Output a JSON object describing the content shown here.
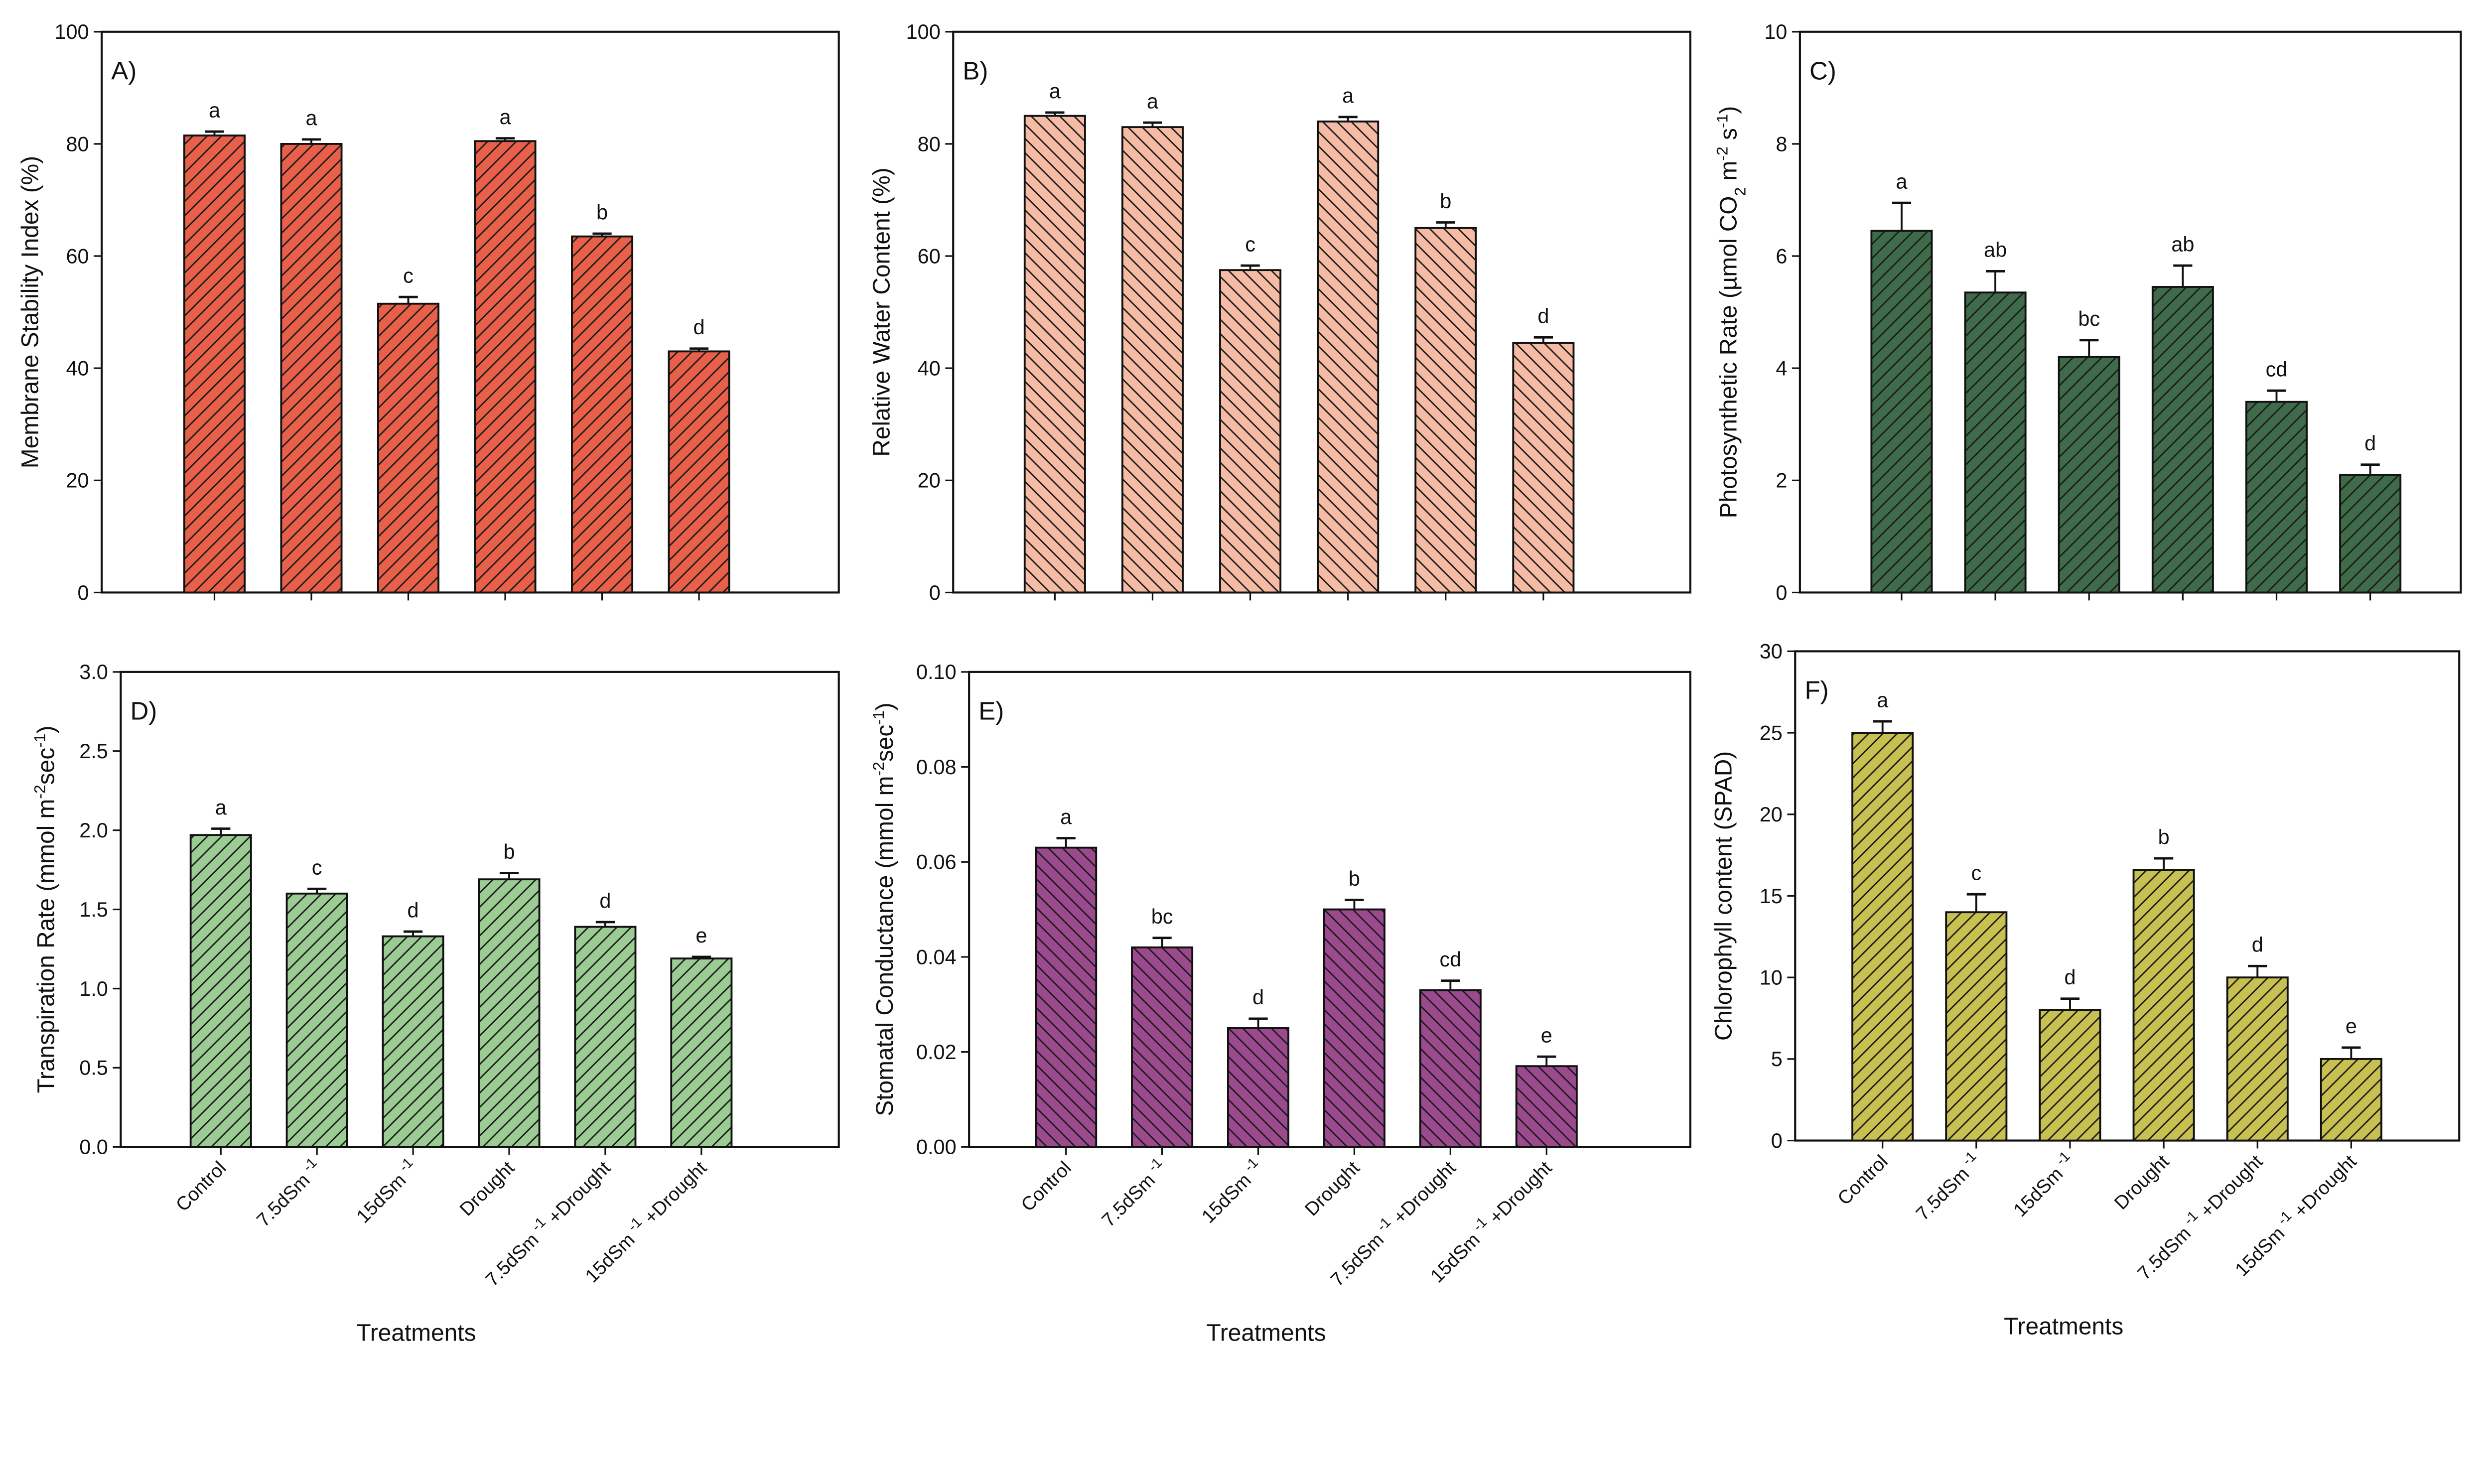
{
  "chart_data": [
    {
      "type": "bar",
      "panel": "A)",
      "title": "",
      "ylabel": [
        {
          "t": "Membrane Stability Index (%)"
        }
      ],
      "xlabel": "",
      "ylim": [
        0,
        100
      ],
      "yticks": [
        0,
        20,
        40,
        60,
        80,
        100
      ],
      "tickfmt": 0,
      "categories": [
        [
          "Control"
        ],
        [
          "7.5dSm",
          "-1"
        ],
        [
          "15dSm",
          "-1"
        ],
        [
          "Drought"
        ],
        [
          "7.5dSm",
          "-1",
          " +Drought"
        ],
        [
          "15dSm",
          "-1",
          " +Drought"
        ]
      ],
      "values": [
        81.5,
        80,
        51.5,
        80.5,
        63.5,
        43
      ],
      "errors": [
        0.7,
        0.8,
        1.2,
        0.5,
        0.5,
        0.5
      ],
      "letters": [
        "a",
        "a",
        "c",
        "a",
        "b",
        "d"
      ],
      "color": "#e8604a",
      "hatch": "forward",
      "show_xticks": false
    },
    {
      "type": "bar",
      "panel": "B)",
      "title": "",
      "ylabel": [
        {
          "t": "Relative Water Content (%)"
        }
      ],
      "xlabel": "",
      "ylim": [
        0,
        100
      ],
      "yticks": [
        0,
        20,
        40,
        60,
        80,
        100
      ],
      "tickfmt": 0,
      "categories": [
        [
          "Control"
        ],
        [
          "7.5dSm",
          "-1"
        ],
        [
          "15dSm",
          "-1"
        ],
        [
          "Drought"
        ],
        [
          "7.5dSm",
          "-1",
          " +Drought"
        ],
        [
          "15dSm",
          "-1",
          " +Drought"
        ]
      ],
      "values": [
        85,
        83,
        57.5,
        84,
        65,
        44.5
      ],
      "errors": [
        0.6,
        0.8,
        0.8,
        0.8,
        1.0,
        1.0
      ],
      "letters": [
        "a",
        "a",
        "c",
        "a",
        "b",
        "d"
      ],
      "color": "#f6bba4",
      "hatch": "backward",
      "show_xticks": false
    },
    {
      "type": "bar",
      "panel": "C)",
      "title": "",
      "ylabel": [
        {
          "t": "Photosynthetic Rate (µmol CO"
        },
        {
          "t": "2",
          "sub": true
        },
        {
          "t": " m"
        },
        {
          "t": "-2",
          "sup": true
        },
        {
          "t": " s"
        },
        {
          "t": "-1",
          "sup": true
        },
        {
          "t": ")"
        }
      ],
      "xlabel": "",
      "ylim": [
        0,
        10
      ],
      "yticks": [
        0,
        2,
        4,
        6,
        8,
        10
      ],
      "tickfmt": 0,
      "categories": [
        [
          "Control"
        ],
        [
          "7.5dSm",
          "-1"
        ],
        [
          "15dSm",
          "-1"
        ],
        [
          "Drought"
        ],
        [
          "7.5dSm",
          "-1",
          " +Drought"
        ],
        [
          "15dSm",
          "-1",
          " +Drought"
        ]
      ],
      "values": [
        6.45,
        5.35,
        4.2,
        5.45,
        3.4,
        2.1
      ],
      "errors": [
        0.5,
        0.38,
        0.3,
        0.38,
        0.2,
        0.18
      ],
      "letters": [
        "a",
        "ab",
        "bc",
        "ab",
        "cd",
        "d"
      ],
      "color": "#3f6b4a",
      "hatch": "forward",
      "show_xticks": false
    },
    {
      "type": "bar",
      "panel": "D)",
      "title": "",
      "ylabel": [
        {
          "t": "Transpiration Rate (mmol m"
        },
        {
          "t": "-2",
          "sup": true
        },
        {
          "t": "sec"
        },
        {
          "t": "-1",
          "sup": true
        },
        {
          "t": ")"
        }
      ],
      "xlabel": "Treatments",
      "ylim": [
        0,
        3
      ],
      "yticks": [
        0,
        0.5,
        1,
        1.5,
        2,
        2.5,
        3
      ],
      "tickfmt": 1,
      "categories": [
        [
          "Control"
        ],
        [
          "7.5dSm",
          "-1"
        ],
        [
          "15dSm",
          "-1"
        ],
        [
          "Drought"
        ],
        [
          "7.5dSm",
          "-1",
          " +Drought"
        ],
        [
          "15dSm",
          "-1",
          " +Drought"
        ]
      ],
      "values": [
        1.97,
        1.6,
        1.33,
        1.69,
        1.39,
        1.19
      ],
      "errors": [
        0.04,
        0.03,
        0.03,
        0.04,
        0.03,
        0.01
      ],
      "letters": [
        "a",
        "c",
        "d",
        "b",
        "d",
        "e"
      ],
      "color": "#9bcc93",
      "hatch": "forward",
      "show_xticks": true
    },
    {
      "type": "bar",
      "panel": "E)",
      "title": "",
      "ylabel": [
        {
          "t": "Stomatal Conductance (mmol m"
        },
        {
          "t": "-2",
          "sup": true
        },
        {
          "t": "sec"
        },
        {
          "t": "-1",
          "sup": true
        },
        {
          "t": ")"
        }
      ],
      "xlabel": "Treatments",
      "ylim": [
        0,
        0.1
      ],
      "yticks": [
        0,
        0.02,
        0.04,
        0.06,
        0.08,
        0.1
      ],
      "tickfmt": 2,
      "categories": [
        [
          "Control"
        ],
        [
          "7.5dSm",
          "-1"
        ],
        [
          "15dSm",
          "-1"
        ],
        [
          "Drought"
        ],
        [
          "7.5dSm",
          "-1",
          " +Drought"
        ],
        [
          "15dSm",
          "-1",
          " +Drought"
        ]
      ],
      "values": [
        0.063,
        0.042,
        0.025,
        0.05,
        0.033,
        0.017
      ],
      "errors": [
        0.002,
        0.002,
        0.002,
        0.002,
        0.002,
        0.002
      ],
      "letters": [
        "a",
        "bc",
        "d",
        "b",
        "cd",
        "e"
      ],
      "color": "#9b4a8e",
      "hatch": "backward",
      "show_xticks": true
    },
    {
      "type": "bar",
      "panel": "F)",
      "title": "",
      "ylabel": [
        {
          "t": "Chlorophyll content (SPAD)"
        }
      ],
      "xlabel": "Treatments",
      "ylim": [
        0,
        30
      ],
      "yticks": [
        0,
        5,
        10,
        15,
        20,
        25,
        30
      ],
      "tickfmt": 0,
      "categories": [
        [
          "Control"
        ],
        [
          "7.5dSm",
          "-1"
        ],
        [
          "15dSm",
          "-1"
        ],
        [
          "Drought"
        ],
        [
          "7.5dSm",
          "-1",
          " +Drought"
        ],
        [
          "15dSm",
          "-1",
          " +Drought"
        ]
      ],
      "values": [
        25,
        14,
        8,
        16.6,
        10,
        5
      ],
      "errors": [
        0.7,
        1.1,
        0.7,
        0.7,
        0.7,
        0.7
      ],
      "letters": [
        "a",
        "c",
        "d",
        "b",
        "d",
        "e"
      ],
      "color": "#c8c050",
      "hatch": "forward",
      "show_xticks": true
    }
  ]
}
